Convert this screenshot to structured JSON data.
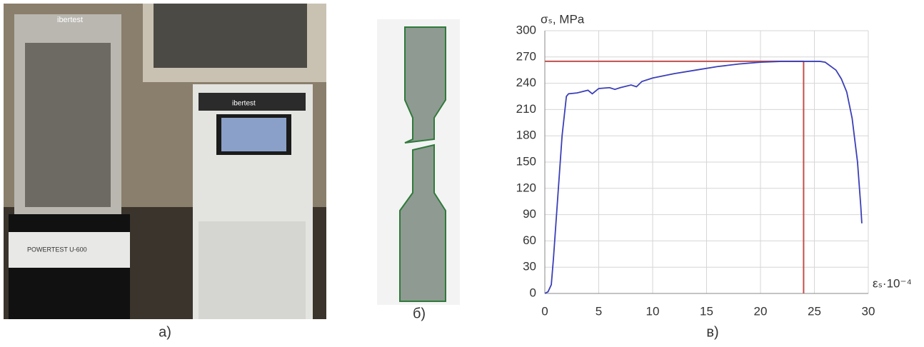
{
  "captions": [
    "а)",
    "б)",
    "в)"
  ],
  "photo_texts": [
    "ibertest",
    "ibertest",
    "POWERTEST U-600"
  ],
  "chart_data": {
    "type": "line",
    "y_label": "σₛ, MPa",
    "x_label": "εₛ·10⁻⁴",
    "x": [
      0,
      0.3,
      0.6,
      0.8,
      1.2,
      1.6,
      2.0,
      2.2,
      3,
      4,
      4.4,
      5,
      6,
      6.5,
      7,
      8,
      8.5,
      9,
      10,
      12,
      14,
      16,
      18,
      20,
      22,
      24,
      25.5,
      26,
      27,
      27.5,
      28,
      28.5,
      29,
      29.3,
      29.4
    ],
    "series": [
      {
        "color": "#3b3fb8",
        "values": [
          0,
          2,
          10,
          40,
          110,
          180,
          225,
          228,
          229,
          232,
          228,
          234,
          235,
          233,
          235,
          238,
          236,
          242,
          246,
          251,
          255,
          259,
          262,
          264,
          265,
          265,
          265,
          264,
          255,
          245,
          230,
          200,
          150,
          100,
          80
        ]
      }
    ],
    "reference_lines": {
      "color": "#c0504d",
      "y": 265,
      "x": 24
    },
    "xlim": [
      0,
      30
    ],
    "xticks": [
      0,
      5,
      10,
      15,
      20,
      25,
      30
    ],
    "ylim": [
      0,
      300
    ],
    "yticks": [
      0,
      30,
      60,
      90,
      120,
      150,
      180,
      210,
      240,
      270,
      300
    ],
    "grid": true
  }
}
